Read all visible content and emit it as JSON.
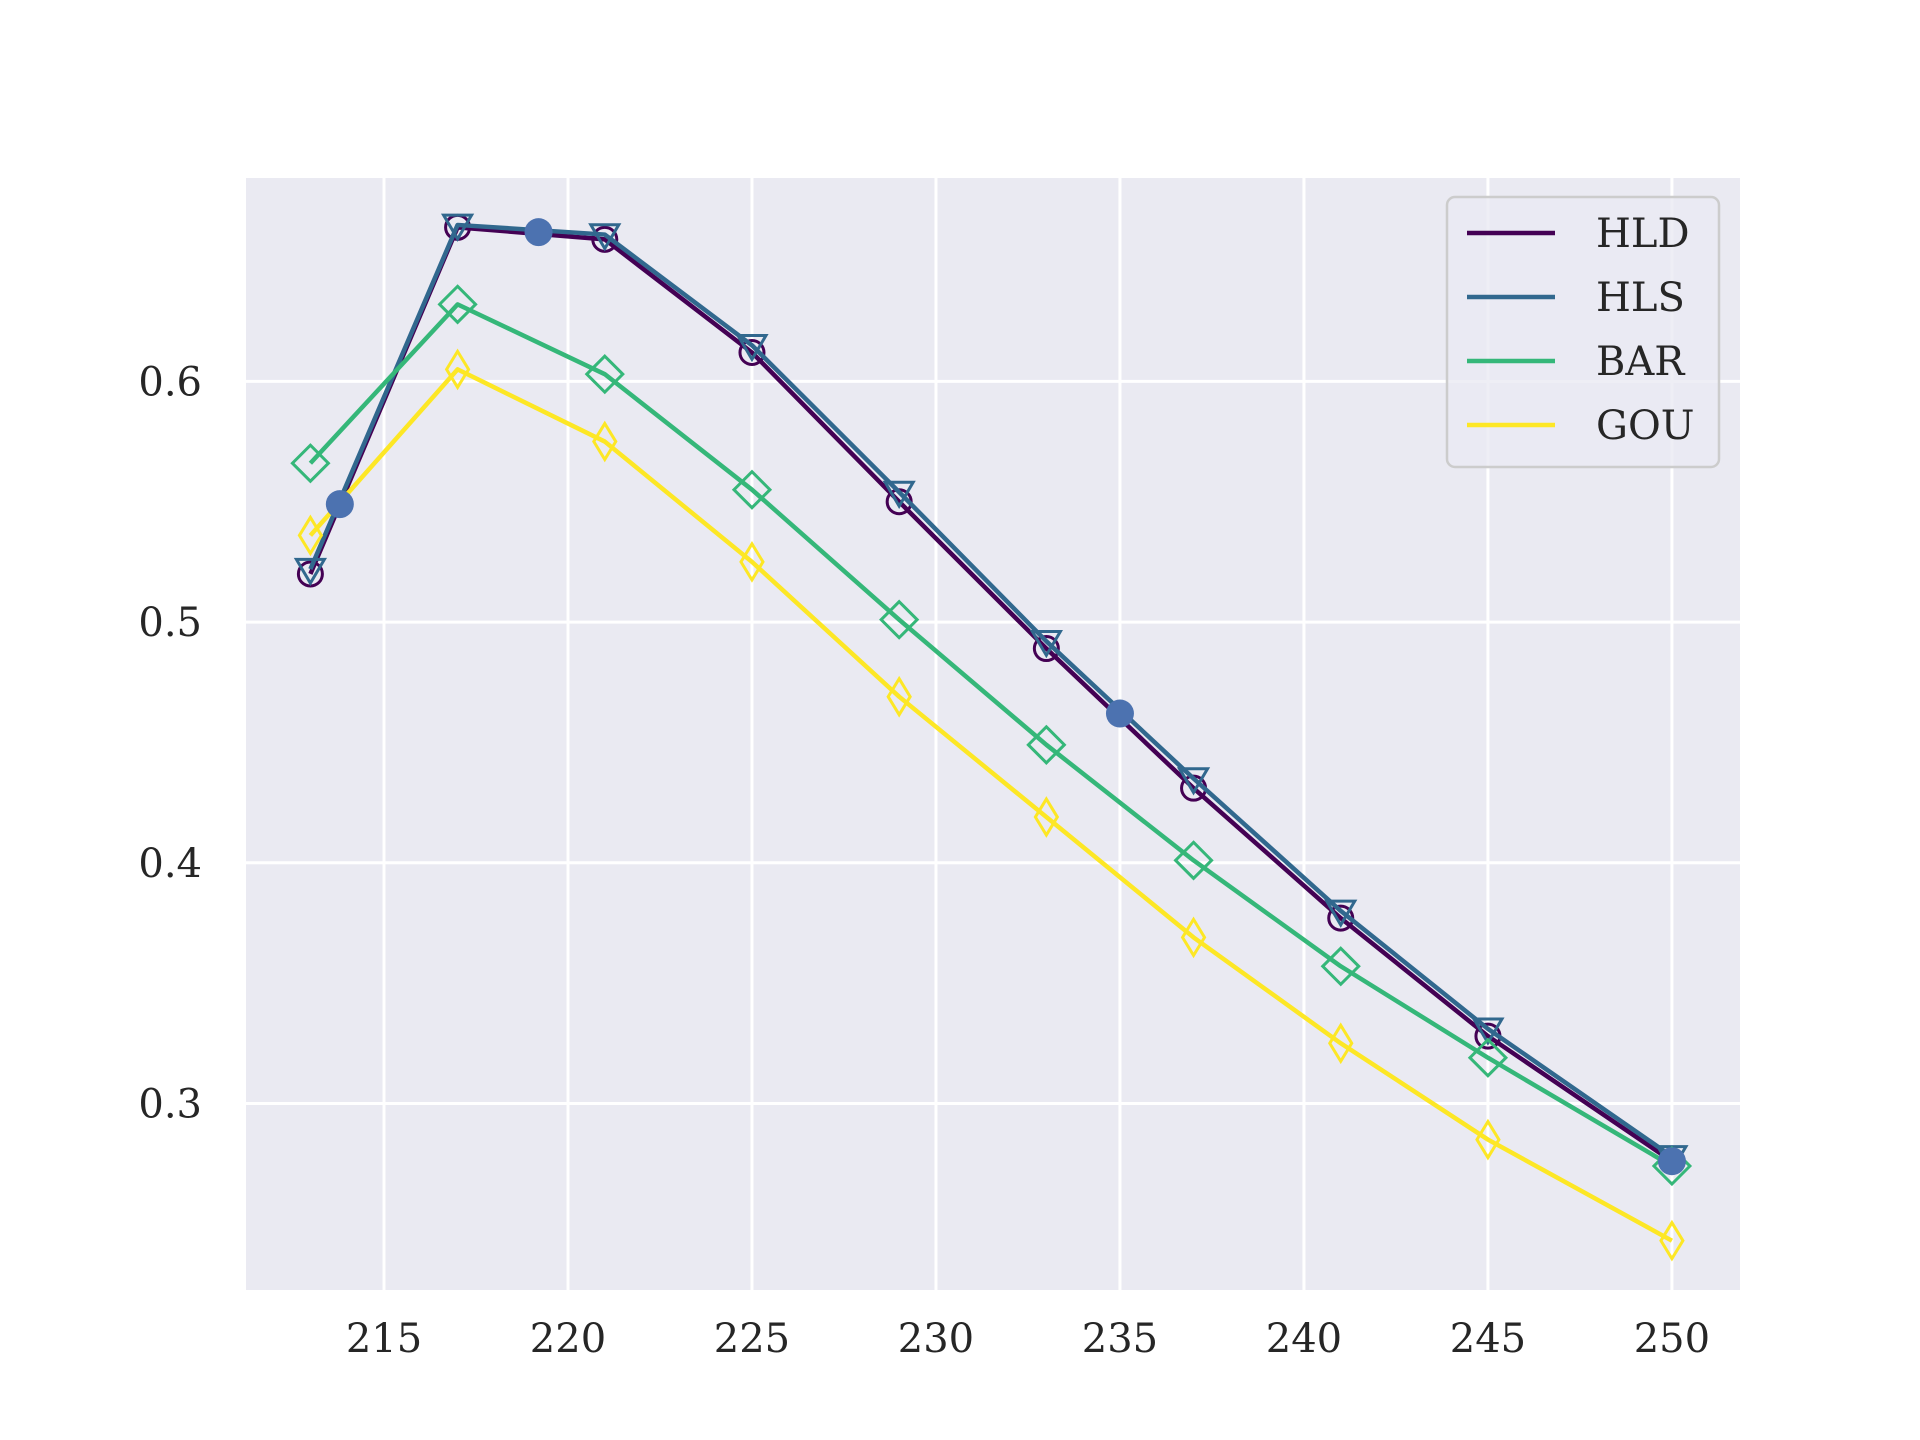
{
  "chart_data": {
    "type": "line",
    "title": "",
    "xlabel": "",
    "ylabel": "",
    "xlim": [
      211.25,
      251.85
    ],
    "ylim": [
      0.2225,
      0.6845
    ],
    "x_ticks": [
      215,
      220,
      225,
      230,
      235,
      240,
      245,
      250
    ],
    "x_tick_labels": [
      "215",
      "220",
      "225",
      "230",
      "235",
      "240",
      "245",
      "250"
    ],
    "y_ticks": [
      0.3,
      0.4,
      0.5,
      0.6
    ],
    "y_tick_labels": [
      "0.3",
      "0.4",
      "0.5",
      "0.6"
    ],
    "grid": true,
    "legend_position": "top-right",
    "background_color": "#eaeaf2",
    "grid_color": "#ffffff",
    "series": [
      {
        "name": "HLD",
        "color": "#440154",
        "marker": "circle",
        "x": [
          213,
          217,
          221,
          225,
          229,
          233,
          237,
          241,
          245,
          250
        ],
        "y": [
          0.52,
          0.664,
          0.659,
          0.612,
          0.55,
          0.489,
          0.431,
          0.377,
          0.328,
          0.276
        ]
      },
      {
        "name": "HLS",
        "color": "#31688e",
        "marker": "triangle-down",
        "x": [
          213,
          217,
          221,
          225,
          229,
          233,
          237,
          241,
          245,
          250
        ],
        "y": [
          0.522,
          0.665,
          0.661,
          0.615,
          0.554,
          0.492,
          0.435,
          0.38,
          0.331,
          0.278
        ]
      },
      {
        "name": "BAR",
        "color": "#35b779",
        "marker": "diamond",
        "x": [
          213,
          217,
          221,
          225,
          229,
          233,
          237,
          241,
          245,
          250
        ],
        "y": [
          0.566,
          0.632,
          0.603,
          0.555,
          0.501,
          0.449,
          0.401,
          0.357,
          0.319,
          0.274
        ]
      },
      {
        "name": "GOU",
        "color": "#fde725",
        "marker": "thin-diamond",
        "x": [
          213,
          217,
          221,
          225,
          229,
          233,
          237,
          241,
          245,
          250
        ],
        "y": [
          0.536,
          0.605,
          0.575,
          0.525,
          0.469,
          0.419,
          0.369,
          0.325,
          0.285,
          0.243
        ]
      }
    ],
    "highlight_points": {
      "color": "#4c72b0",
      "x": [
        213.8,
        219.2,
        235,
        250
      ],
      "y": [
        0.549,
        0.662,
        0.462,
        0.276
      ]
    }
  }
}
